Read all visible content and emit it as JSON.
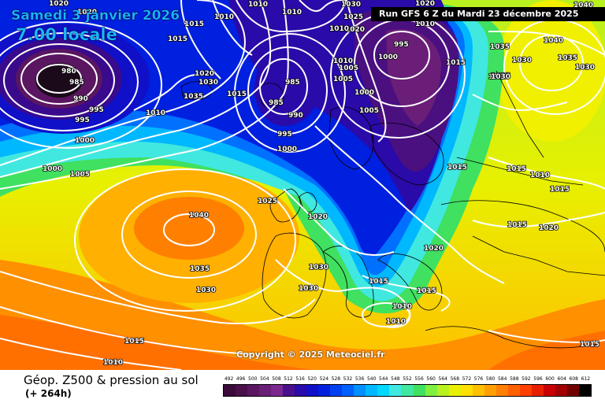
{
  "header": {
    "date": "Samedi 3 janvier 2026",
    "time": "7.00 locale",
    "run": "Run GFS 6 Z du Mardi 23 décembre 2025"
  },
  "footer": {
    "title": "Géop. Z500 & pression au sol",
    "subtitle": "(+ 264h)",
    "copyright": "Copyright © 2025 Meteociel.fr"
  },
  "legend": {
    "labels": [
      "492",
      "496",
      "500",
      "504",
      "508",
      "512",
      "516",
      "520",
      "524",
      "528",
      "532",
      "536",
      "540",
      "544",
      "548",
      "552",
      "556",
      "560",
      "564",
      "568",
      "572",
      "576",
      "580",
      "584",
      "588",
      "592",
      "596",
      "600",
      "604",
      "608",
      "612"
    ],
    "colors": [
      "#3a0a3a",
      "#4a104a",
      "#5a1660",
      "#6a1e78",
      "#7a2890",
      "#4a108c",
      "#2a0aa8",
      "#1010c8",
      "#0020e0",
      "#0040f0",
      "#0060ff",
      "#0090ff",
      "#00b8ff",
      "#00d8ff",
      "#40e8e0",
      "#40e8a0",
      "#40e060",
      "#80f040",
      "#b8f020",
      "#e8f000",
      "#ffe000",
      "#ffc000",
      "#ffa000",
      "#ff8000",
      "#ff6000",
      "#ff4000",
      "#e82000",
      "#c80000",
      "#a00000",
      "#700000",
      "#000000"
    ]
  },
  "isobars": [
    {
      "id": "L1",
      "value": "980"
    },
    {
      "id": "L2",
      "value": "985"
    },
    {
      "id": "L3",
      "value": "990"
    },
    {
      "id": "L4",
      "value": "995"
    },
    {
      "id": "L5",
      "value": "995"
    },
    {
      "id": "L6",
      "value": "1000"
    },
    {
      "id": "L7",
      "value": "1000"
    },
    {
      "id": "L8",
      "value": "1005"
    },
    {
      "id": "L9",
      "value": "1010"
    },
    {
      "id": "L10",
      "value": "1015"
    },
    {
      "id": "L11",
      "value": "1020"
    },
    {
      "id": "L12",
      "value": "1010"
    },
    {
      "id": "L13",
      "value": "1010"
    },
    {
      "id": "L14",
      "value": "1015"
    },
    {
      "id": "L15",
      "value": "1020"
    },
    {
      "id": "L16",
      "value": "1030"
    },
    {
      "id": "L17",
      "value": "1035"
    },
    {
      "id": "L18",
      "value": "1015"
    },
    {
      "id": "L19",
      "value": "1010"
    },
    {
      "id": "L20",
      "value": "985"
    },
    {
      "id": "L21",
      "value": "985"
    },
    {
      "id": "L22",
      "value": "990"
    },
    {
      "id": "L23",
      "value": "995"
    },
    {
      "id": "L24",
      "value": "1000"
    },
    {
      "id": "L25",
      "value": "1030"
    },
    {
      "id": "L26",
      "value": "1025"
    },
    {
      "id": "L27",
      "value": "1020"
    },
    {
      "id": "L28",
      "value": "1010"
    },
    {
      "id": "L29",
      "value": "1005"
    },
    {
      "id": "L30",
      "value": "1005"
    },
    {
      "id": "L31",
      "value": "1000"
    },
    {
      "id": "L32",
      "value": "995"
    },
    {
      "id": "L33",
      "value": "1000"
    },
    {
      "id": "L34",
      "value": "1005"
    },
    {
      "id": "L35",
      "value": "1040"
    },
    {
      "id": "L36",
      "value": "1035"
    },
    {
      "id": "L37",
      "value": "1030"
    },
    {
      "id": "L38",
      "value": "1025"
    },
    {
      "id": "L39",
      "value": "1020"
    },
    {
      "id": "L40",
      "value": "1030"
    },
    {
      "id": "L41",
      "value": "1030"
    },
    {
      "id": "L42",
      "value": "1015"
    },
    {
      "id": "L43",
      "value": "1010"
    },
    {
      "id": "L44",
      "value": "1040"
    },
    {
      "id": "L45",
      "value": "1035"
    },
    {
      "id": "L46",
      "value": "1030"
    },
    {
      "id": "L47",
      "value": "1015"
    },
    {
      "id": "L48",
      "value": "1010"
    },
    {
      "id": "L49",
      "value": "1020"
    },
    {
      "id": "L50",
      "value": "1015"
    },
    {
      "id": "L51",
      "value": "1010"
    },
    {
      "id": "L52",
      "value": "1010"
    },
    {
      "id": "L53",
      "value": "1015"
    },
    {
      "id": "L54",
      "value": "1015"
    },
    {
      "id": "L55",
      "value": "1015"
    },
    {
      "id": "L56",
      "value": "1015"
    },
    {
      "id": "L57",
      "value": "1020"
    },
    {
      "id": "L58",
      "value": "1040"
    },
    {
      "id": "L59",
      "value": "1035"
    },
    {
      "id": "L60",
      "value": "1030"
    },
    {
      "id": "L61",
      "value": "1025"
    },
    {
      "id": "L62",
      "value": "1015"
    },
    {
      "id": "L63",
      "value": "1015"
    },
    {
      "id": "L64",
      "value": "1020"
    },
    {
      "id": "L65",
      "value": "1010"
    },
    {
      "id": "L66",
      "value": "1010"
    },
    {
      "id": "L67",
      "value": "1020"
    },
    {
      "id": "L68",
      "value": "1025"
    },
    {
      "id": "L69",
      "value": "1030"
    }
  ]
}
